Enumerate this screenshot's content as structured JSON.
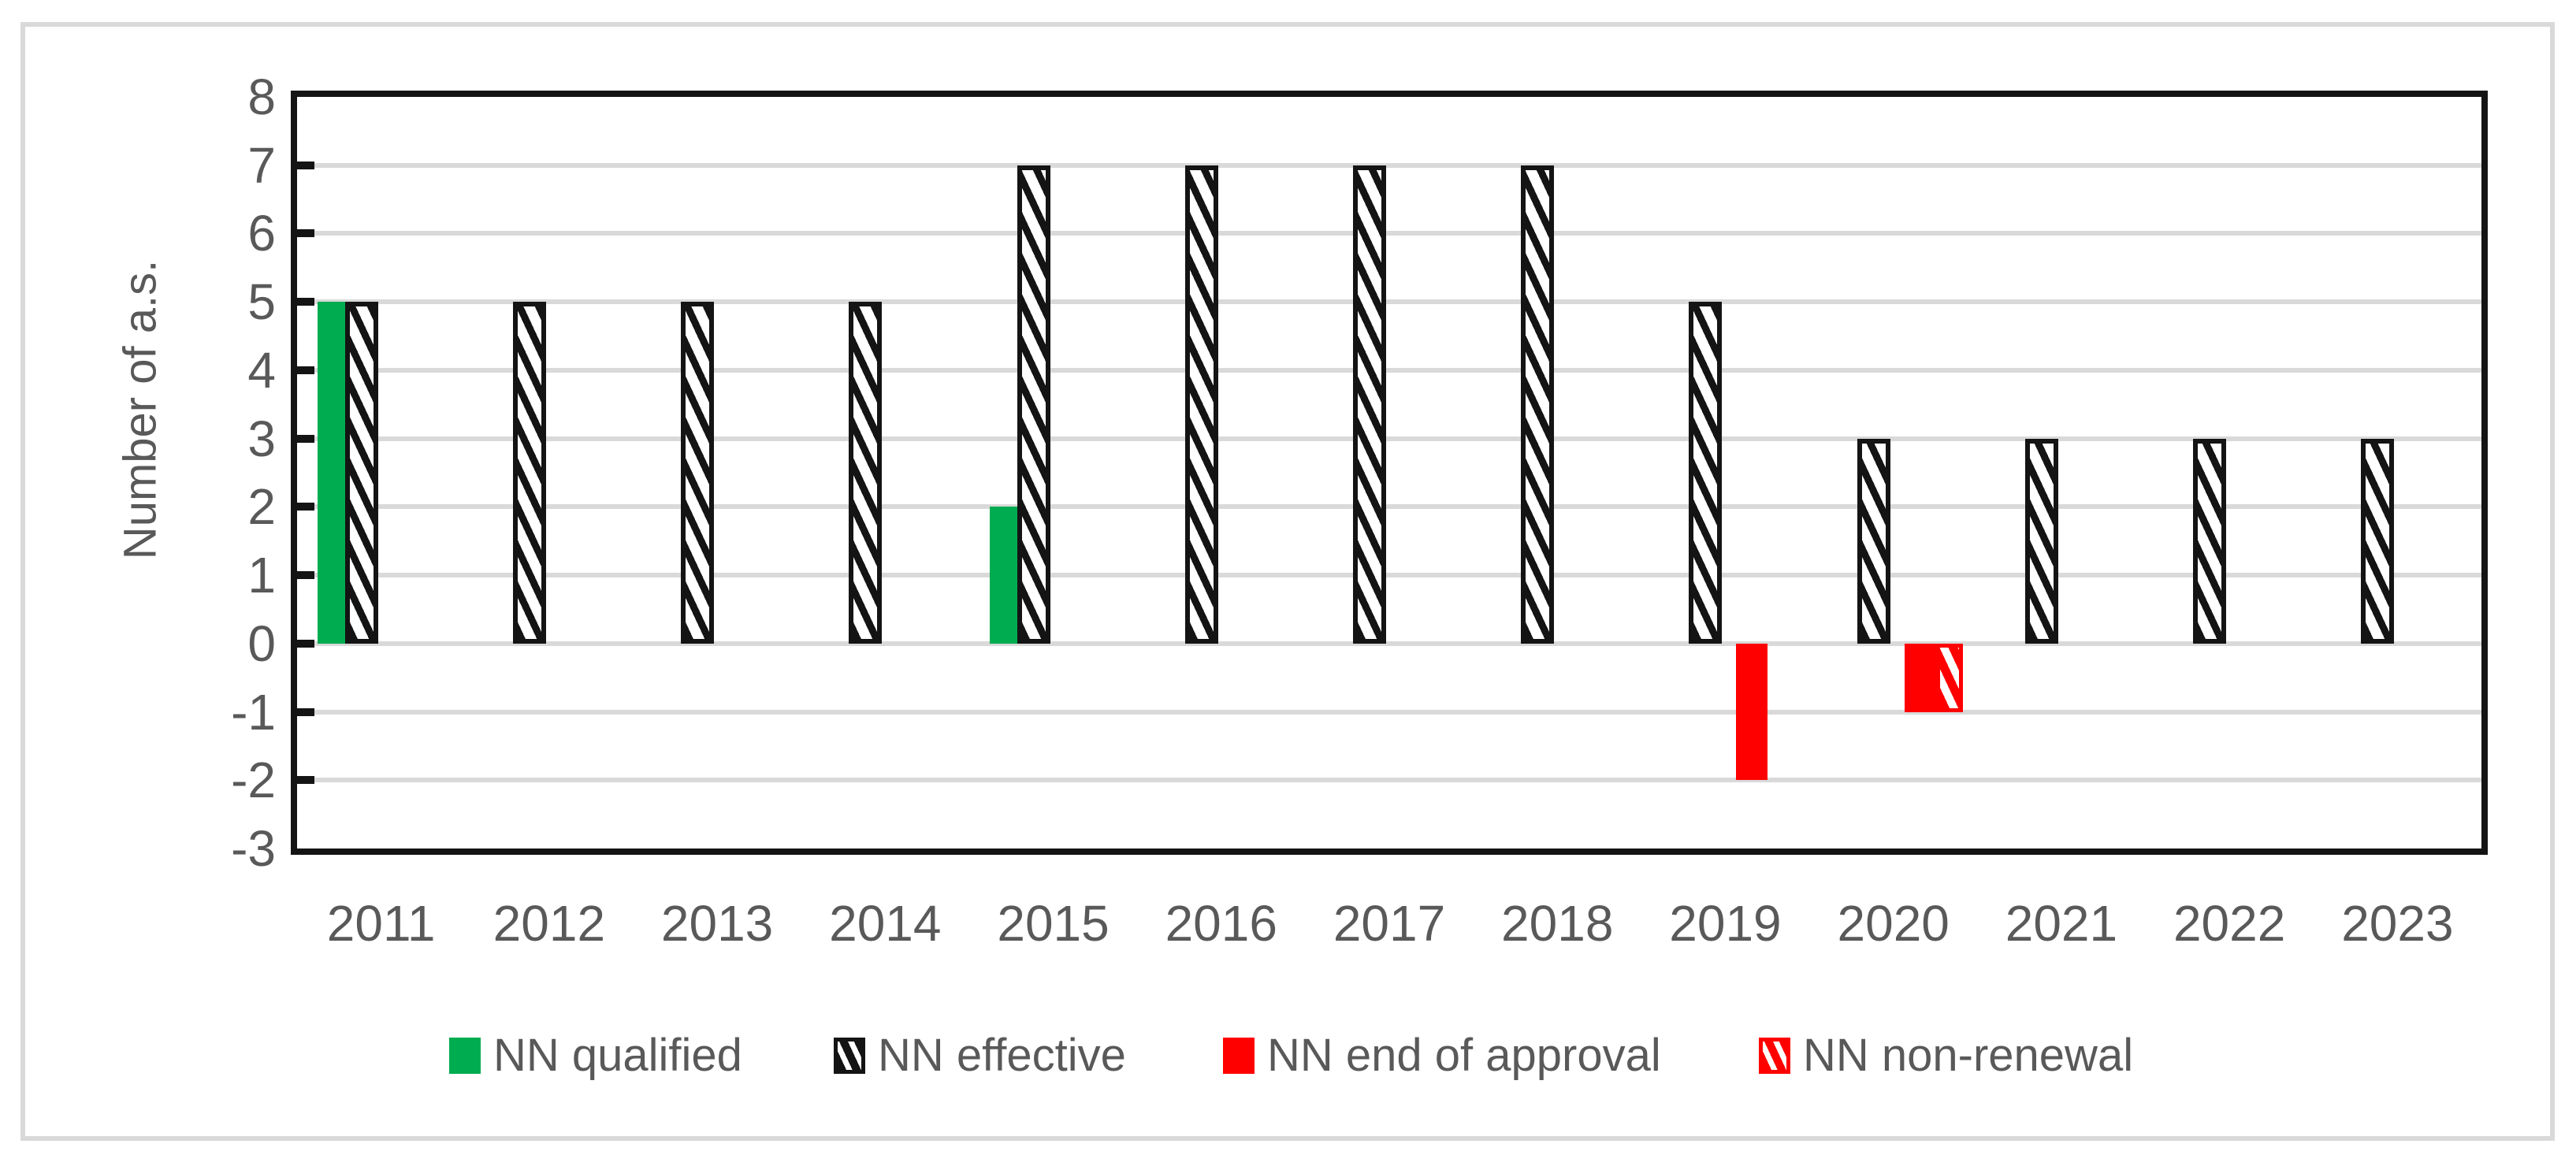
{
  "chart_data": {
    "type": "bar",
    "title": "",
    "xlabel": "",
    "ylabel": "Number of a.s.",
    "ylim": [
      -3,
      8
    ],
    "ytick_step": 1,
    "grid": true,
    "legend_position": "bottom",
    "categories": [
      "2011",
      "2012",
      "2013",
      "2014",
      "2015",
      "2016",
      "2017",
      "2018",
      "2019",
      "2020",
      "2021",
      "2022",
      "2023"
    ],
    "series": [
      {
        "name": "NN qualified",
        "style": "solid-green",
        "color": "#00ac50",
        "values": [
          5,
          0,
          0,
          0,
          2,
          0,
          0,
          0,
          0,
          0,
          0,
          0,
          0
        ]
      },
      {
        "name": "NN effective",
        "style": "hatch-black",
        "color": "#141414",
        "values": [
          5,
          5,
          5,
          5,
          7,
          7,
          7,
          7,
          5,
          3,
          3,
          3,
          3
        ]
      },
      {
        "name": "NN end of approval",
        "style": "solid-red",
        "color": "#ff0000",
        "values": [
          0,
          0,
          0,
          0,
          0,
          0,
          0,
          0,
          -2,
          -1,
          0,
          0,
          0
        ]
      },
      {
        "name": "NN non-renewal",
        "style": "hatch-red",
        "color": "#ff0000",
        "values": [
          0,
          0,
          0,
          0,
          0,
          0,
          0,
          0,
          0,
          -1,
          0,
          0,
          0
        ]
      }
    ]
  },
  "colors": {
    "green": "#00ac50",
    "red": "#ff0000",
    "hatch_black": "#141414",
    "gridline": "#d9d9d9",
    "frame": "#d9d9d9",
    "text": "#595959",
    "plot_border": "#141414",
    "background": "#ffffff"
  }
}
